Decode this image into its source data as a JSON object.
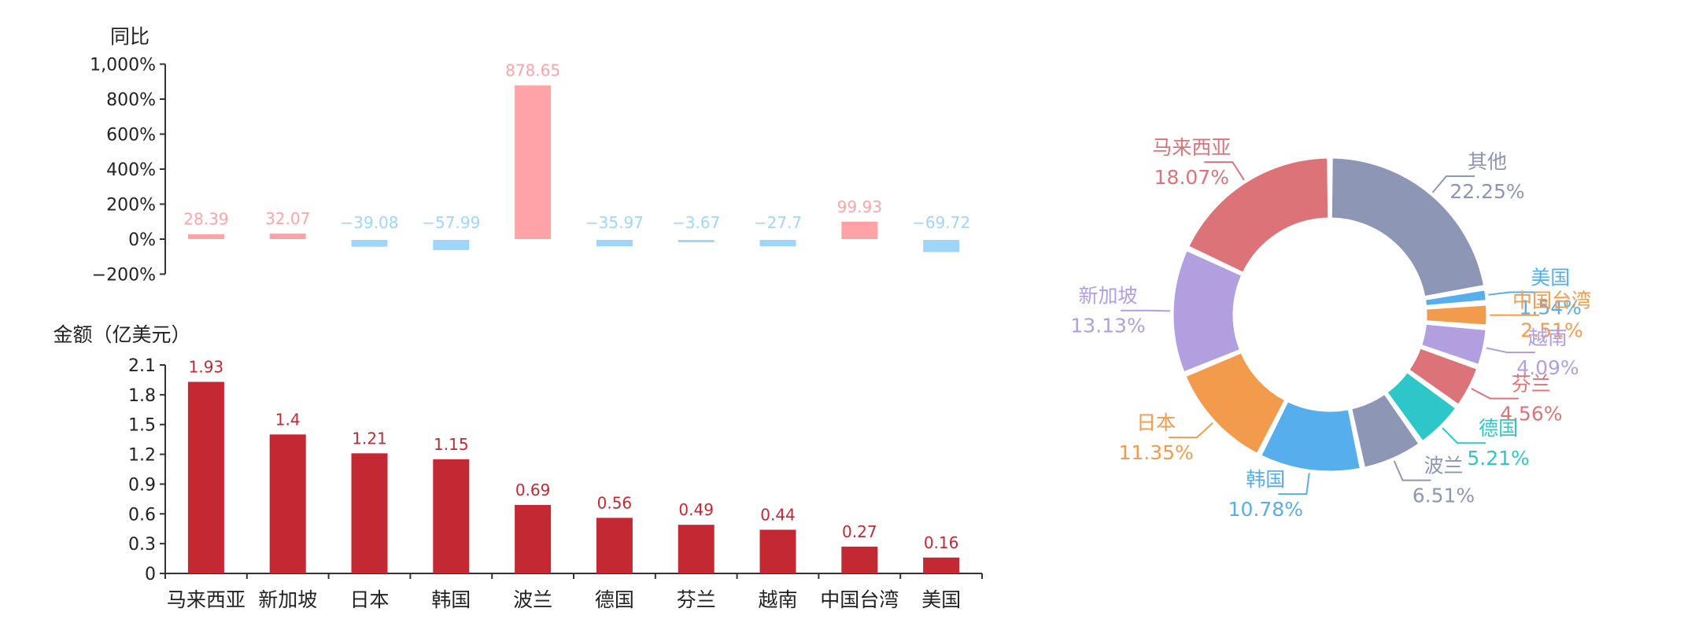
{
  "chart_data": [
    {
      "type": "bar",
      "ylabel": "同比",
      "categories": [
        "马来西亚",
        "新加坡",
        "日本",
        "韩国",
        "波兰",
        "德国",
        "芬兰",
        "越南",
        "中国台湾",
        "美国"
      ],
      "values": [
        28.39,
        32.07,
        -39.08,
        -57.99,
        878.65,
        -35.97,
        -3.67,
        -27.7,
        99.93,
        -69.72
      ],
      "value_labels": [
        "28.39",
        "32.07",
        "−39.08",
        "−57.99",
        "878.65",
        "−35.97",
        "−3.67",
        "−27.7",
        "99.93",
        "−69.72"
      ],
      "yticks": [
        "1,000%",
        "800%",
        "600%",
        "400%",
        "200%",
        "0%",
        "−200%"
      ],
      "ylim": [
        -200,
        1000
      ],
      "colors": {
        "positive": "#FFA3A6",
        "negative": "#9ED6FB"
      }
    },
    {
      "type": "bar",
      "ylabel": "金额（亿美元）",
      "categories": [
        "马来西亚",
        "新加坡",
        "日本",
        "韩国",
        "波兰",
        "德国",
        "芬兰",
        "越南",
        "中国台湾",
        "美国"
      ],
      "values": [
        1.93,
        1.4,
        1.21,
        1.15,
        0.69,
        0.56,
        0.49,
        0.44,
        0.27,
        0.16
      ],
      "value_labels": [
        "1.93",
        "1.4",
        "1.21",
        "1.15",
        "0.69",
        "0.56",
        "0.49",
        "0.44",
        "0.27",
        "0.16"
      ],
      "yticks": [
        "2.1",
        "1.8",
        "1.5",
        "1.2",
        "0.9",
        "0.6",
        "0.3",
        "0"
      ],
      "ylim": [
        0,
        2.1
      ],
      "colors": {
        "bar": "#C22933"
      }
    },
    {
      "type": "pie",
      "style": "donut",
      "slices": [
        {
          "name": "其他",
          "value": 22.25,
          "label": "22.25%",
          "color": "#8D97B5"
        },
        {
          "name": "美国",
          "value": 1.54,
          "label": "1.54%",
          "color": "#56AEED"
        },
        {
          "name": "中国台湾",
          "value": 2.51,
          "label": "2.51%",
          "color": "#F39B4C"
        },
        {
          "name": "越南",
          "value": 4.09,
          "label": "4.09%",
          "color": "#B19FE0"
        },
        {
          "name": "芬兰",
          "value": 4.56,
          "label": "4.56%",
          "color": "#DB7378"
        },
        {
          "name": "德国",
          "value": 5.21,
          "label": "5.21%",
          "color": "#2EC7C9"
        },
        {
          "name": "波兰",
          "value": 6.51,
          "label": "6.51%",
          "color": "#8D97B5"
        },
        {
          "name": "韩国",
          "value": 10.78,
          "label": "10.78%",
          "color": "#56AEED"
        },
        {
          "name": "日本",
          "value": 11.35,
          "label": "11.35%",
          "color": "#F39B4C"
        },
        {
          "name": "新加坡",
          "value": 13.13,
          "label": "13.13%",
          "color": "#B19FE0"
        },
        {
          "name": "马来西亚",
          "value": 18.07,
          "label": "18.07%",
          "color": "#DB7378"
        }
      ]
    }
  ]
}
